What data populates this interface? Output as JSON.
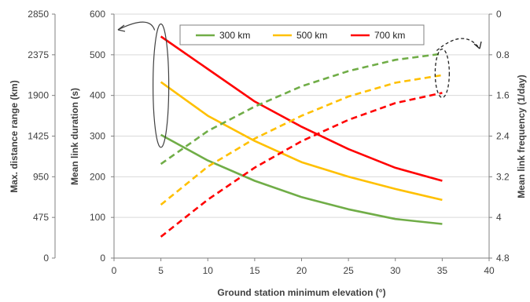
{
  "chart_data": {
    "type": "line",
    "x": [
      5,
      10,
      15,
      20,
      25,
      30,
      35
    ],
    "xlabel": "Ground station minimum elevation (°)",
    "xlim": [
      0,
      40
    ],
    "xticks": [
      "0",
      "5",
      "10",
      "15",
      "20",
      "25",
      "30",
      "35",
      "40"
    ],
    "left_axis": {
      "label": "Max. distance range (km)",
      "lim": [
        0,
        2850
      ],
      "ticks": [
        "0",
        "475",
        "950",
        "1425",
        "1900",
        "2375",
        "2850"
      ]
    },
    "mid_axis": {
      "label": "Mean link duration (s)",
      "lim": [
        0,
        600
      ],
      "ticks": [
        "0",
        "100",
        "200",
        "300",
        "400",
        "500",
        "600"
      ]
    },
    "right_axis": {
      "label": "Mean link frequency (1/day)",
      "lim": [
        0,
        4.8
      ],
      "inverted": true,
      "ticks": [
        "0",
        "0.8",
        "1.6",
        "2.4",
        "3.2",
        "4",
        "4.8"
      ]
    },
    "legend": {
      "position": "top",
      "entries": [
        "300 km",
        "500 km",
        "700 km"
      ]
    },
    "series": [
      {
        "name": "300 km",
        "color": "#70ad47",
        "style": "solid",
        "axis": "mid",
        "values": [
          303,
          240,
          190,
          150,
          120,
          96,
          84
        ]
      },
      {
        "name": "500 km",
        "color": "#ffc000",
        "style": "solid",
        "axis": "mid",
        "values": [
          433,
          350,
          288,
          236,
          200,
          170,
          143
        ]
      },
      {
        "name": "700 km",
        "color": "#ff0000",
        "style": "solid",
        "axis": "mid",
        "values": [
          545,
          465,
          385,
          323,
          268,
          222,
          190
        ]
      },
      {
        "name": "300 km",
        "color": "#70ad47",
        "style": "dashed",
        "axis": "right",
        "values": [
          2.95,
          2.3,
          1.82,
          1.42,
          1.12,
          0.9,
          0.78
        ]
      },
      {
        "name": "500 km",
        "color": "#ffc000",
        "style": "dashed",
        "axis": "right",
        "values": [
          3.75,
          3.0,
          2.45,
          2.0,
          1.62,
          1.35,
          1.2
        ]
      },
      {
        "name": "700 km",
        "color": "#ff0000",
        "style": "dashed",
        "axis": "right",
        "values": [
          4.38,
          3.65,
          3.02,
          2.5,
          2.08,
          1.75,
          1.55
        ]
      }
    ]
  }
}
